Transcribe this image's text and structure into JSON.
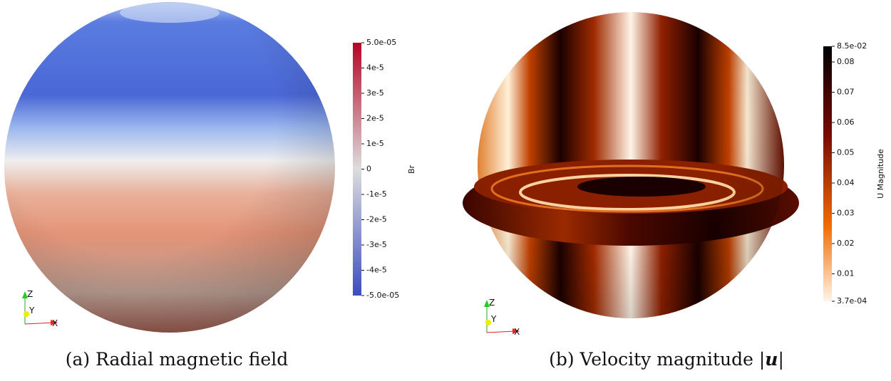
{
  "panels": [
    {
      "colorbar": {
        "title": "Br",
        "ticks": [
          "5.0e-05",
          "4e-5",
          "3e-5",
          "2e-5",
          "1e-5",
          "0",
          "-1e-5",
          "-2e-5",
          "-3e-5",
          "-4e-5",
          "-5.0e-05"
        ]
      },
      "axes": {
        "z": "Z",
        "y": "Y",
        "x": "X"
      },
      "caption": {
        "prefix": "(a) Radial magnetic field",
        "symbol": "",
        "suffix": ""
      }
    },
    {
      "colorbar": {
        "title": "U Magnitude",
        "ticks": [
          "8.5e-02",
          "0.08",
          "0.07",
          "0.06",
          "0.05",
          "0.04",
          "0.03",
          "0.02",
          "0.01",
          "3.7e-04"
        ]
      },
      "axes": {
        "z": "Z",
        "y": "Y",
        "x": "X"
      },
      "caption": {
        "prefix": "(b) Velocity magnitude |",
        "symbol": "u",
        "suffix": "|"
      }
    }
  ]
}
